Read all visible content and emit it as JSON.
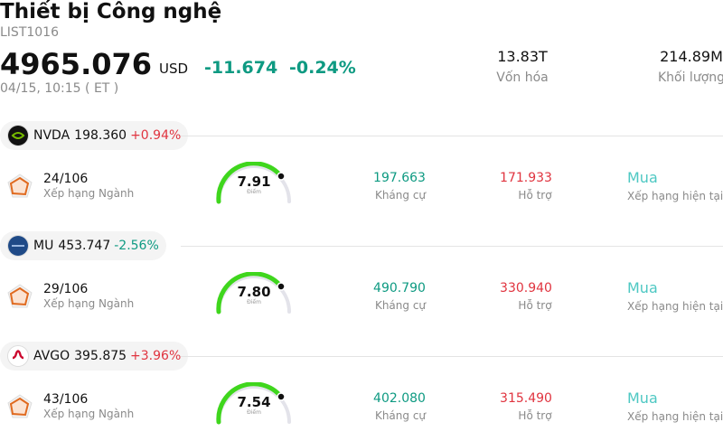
{
  "header": {
    "title": "Thiết bị Công nghệ",
    "code": "LIST1016",
    "price": "4965.076",
    "currency": "USD",
    "change": "-11.674",
    "change_pct": "-0.24%",
    "time": "04/15, 10:15  ( ET )",
    "stats": [
      {
        "value": "13.83T",
        "label": "Vốn hóa"
      },
      {
        "value": "214.89M",
        "label": "Khối lượng"
      }
    ]
  },
  "stocks": [
    {
      "ticker": "NVDA",
      "price": "198.360",
      "change_pct": "+0.94%",
      "rank": "24/106",
      "rank_label": "Xếp hạng Ngành",
      "score": "7.91",
      "score_label": "Điểm",
      "resistance": "197.663",
      "resistance_label": "Kháng cự",
      "support": "171.933",
      "support_label": "Hỗ trợ",
      "rating": "Mua",
      "rating_label": "Xếp hạng hiện tại"
    },
    {
      "ticker": "MU",
      "price": "453.747",
      "change_pct": "-2.56%",
      "rank": "29/106",
      "rank_label": "Xếp hạng Ngành",
      "score": "7.80",
      "score_label": "Điểm",
      "resistance": "490.790",
      "resistance_label": "Kháng cự",
      "support": "330.940",
      "support_label": "Hỗ trợ",
      "rating": "Mua",
      "rating_label": "Xếp hạng hiện tại"
    },
    {
      "ticker": "AVGO",
      "price": "395.875",
      "change_pct": "+3.96%",
      "rank": "43/106",
      "rank_label": "Xếp hạng Ngành",
      "score": "7.54",
      "score_label": "Điểm",
      "resistance": "402.080",
      "resistance_label": "Kháng cự",
      "support": "315.490",
      "support_label": "Hỗ trợ",
      "rating": "Mua",
      "rating_label": "Xếp hạng hiện tại"
    }
  ]
}
